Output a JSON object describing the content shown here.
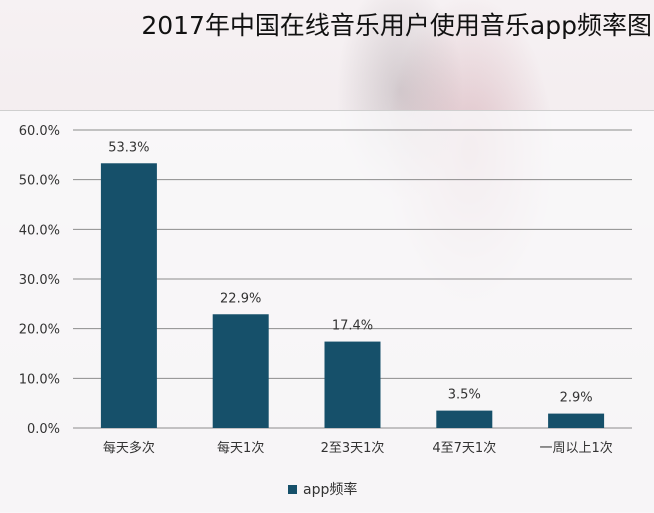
{
  "title": "2017年中国在线音乐用户使用音乐app频率图",
  "colors": {
    "bar": "#16506a",
    "grid": "#8c8c8c",
    "axis_text": "#333333"
  },
  "chart_data": {
    "type": "bar",
    "categories": [
      "每天多次",
      "每天1次",
      "2至3天1次",
      "4至7天1次",
      "一周以上1次"
    ],
    "series": [
      {
        "name": "app频率",
        "values": [
          53.3,
          22.9,
          17.4,
          3.5,
          2.9
        ]
      }
    ],
    "data_labels": [
      "53.3%",
      "22.9%",
      "17.4%",
      "3.5%",
      "2.9%"
    ],
    "yticks": [
      "0.0%",
      "10.0%",
      "20.0%",
      "30.0%",
      "40.0%",
      "50.0%",
      "60.0%"
    ],
    "ylim": [
      0,
      60
    ],
    "grid": true,
    "legend_position": "bottom"
  }
}
